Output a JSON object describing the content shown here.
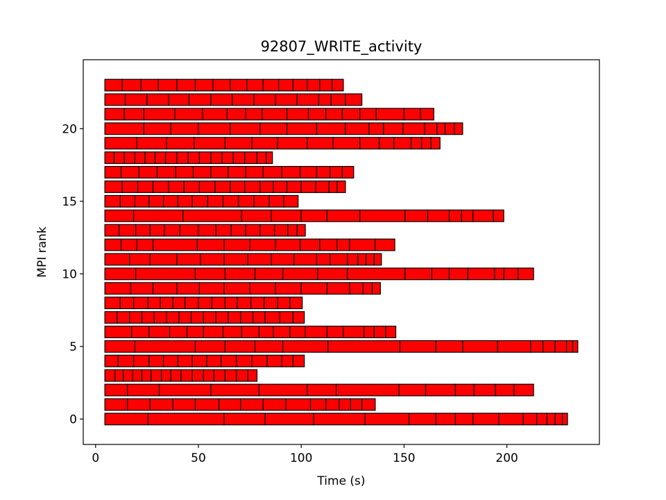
{
  "chart_data": {
    "type": "bar",
    "orientation": "horizontal-timeline",
    "title": "92807_WRITE_activity",
    "xlabel": "Time (s)",
    "ylabel": "MPI rank",
    "xlim": [
      -6,
      245
    ],
    "ylim": [
      -1.75,
      24.75
    ],
    "xticks": [
      0,
      50,
      100,
      150,
      200
    ],
    "yticks": [
      0,
      5,
      10,
      15,
      20
    ],
    "bar_color": "#ff0000",
    "edge_color": "#000000",
    "grid": false,
    "ranks": [
      {
        "rank": 0,
        "start": 4.5,
        "bounds": [
          25.5,
          62.5,
          82.5,
          106.0,
          131.0,
          152.5,
          165.5,
          175.0,
          183.5,
          196.0,
          208.0,
          214.5,
          219.5,
          223.5,
          227.0
        ],
        "end": 229.5
      },
      {
        "rank": 1,
        "start": 4.5,
        "bounds": [
          15.5,
          26.5,
          37.5,
          48.5,
          60.0,
          70.5,
          81.5,
          92.5,
          104.5,
          112.0,
          118.5,
          124.0,
          129.5
        ],
        "end": 136.0
      },
      {
        "rank": 2,
        "start": 4.5,
        "bounds": [
          15.5,
          31.0,
          56.0,
          79.5,
          103.0,
          117.0,
          147.5,
          160.5,
          175.0,
          184.0,
          194.5,
          203.5
        ],
        "end": 213.0
      },
      {
        "rank": 3,
        "start": 4.5,
        "bounds": [
          9.5,
          13.5,
          18.0,
          22.5,
          27.0,
          32.0,
          36.5,
          41.5,
          47.0,
          52.5,
          57.5,
          63.0,
          68.5,
          74.0
        ],
        "end": 78.5
      },
      {
        "rank": 4,
        "start": 4.5,
        "bounds": [
          11.0,
          18.5,
          26.0,
          33.0,
          40.0,
          47.0,
          54.0,
          61.0,
          68.5,
          76.0,
          83.5,
          90.5,
          96.0
        ],
        "end": 101.5
      },
      {
        "rank": 5,
        "start": 4.5,
        "bounds": [
          19.0,
          48.5,
          63.0,
          77.5,
          91.0,
          113.0,
          148.0,
          165.5,
          178.5,
          195.5,
          211.5,
          217.5,
          223.5,
          229.0,
          232.0
        ],
        "end": 234.5
      },
      {
        "rank": 6,
        "start": 4.5,
        "bounds": [
          17.5,
          26.0,
          36.0,
          44.5,
          52.5,
          62.0,
          71.0,
          79.5,
          86.5,
          94.5,
          102.0,
          112.5,
          120.5,
          130.5,
          135.5,
          141.0
        ],
        "end": 146.0
      },
      {
        "rank": 7,
        "start": 4.5,
        "bounds": [
          10.5,
          16.5,
          22.5,
          28.5,
          34.5,
          40.5,
          46.5,
          52.5,
          58.5,
          64.5,
          70.5,
          76.5,
          82.5,
          89.5,
          96.0
        ],
        "end": 101.5
      },
      {
        "rank": 8,
        "start": 4.5,
        "bounds": [
          12.0,
          18.5,
          25.5,
          31.5,
          37.5,
          43.5,
          50.0,
          56.5,
          63.0,
          69.0,
          75.5,
          82.0,
          88.5,
          94.5
        ],
        "end": 100.5
      },
      {
        "rank": 9,
        "start": 4.5,
        "bounds": [
          17.0,
          28.0,
          39.5,
          50.5,
          62.5,
          75.0,
          87.5,
          100.0,
          112.5,
          123.5,
          130.0,
          134.5
        ],
        "end": 138.5
      },
      {
        "rank": 10,
        "start": 4.5,
        "bounds": [
          19.5,
          48.5,
          63.0,
          77.5,
          91.0,
          108.0,
          122.5,
          150.5,
          163.5,
          172.0,
          181.0,
          194.0,
          198.5,
          205.5
        ],
        "end": 213.0
      },
      {
        "rank": 11,
        "start": 4.5,
        "bounds": [
          16.5,
          26.5,
          39.5,
          51.0,
          62.5,
          74.0,
          85.5,
          96.5,
          107.5,
          114.0,
          122.5,
          127.5,
          131.5,
          135.5
        ],
        "end": 139.0
      },
      {
        "rank": 12,
        "start": 4.5,
        "bounds": [
          12.5,
          20.0,
          28.0,
          49.5,
          62.5,
          75.0,
          87.5,
          99.5,
          109.0,
          117.5,
          123.5,
          136.0
        ],
        "end": 145.5
      },
      {
        "rank": 13,
        "start": 4.5,
        "bounds": [
          11.5,
          19.5,
          26.5,
          33.5,
          41.0,
          50.0,
          58.5,
          66.0,
          73.0,
          80.0,
          87.0,
          93.5,
          98.0
        ],
        "end": 102.0
      },
      {
        "rank": 14,
        "start": 4.5,
        "bounds": [
          18.5,
          42.5,
          71.0,
          85.5,
          100.0,
          112.5,
          128.5,
          150.5,
          161.5,
          172.0,
          178.0,
          183.5,
          193.5
        ],
        "end": 198.5
      },
      {
        "rank": 15,
        "start": 4.5,
        "bounds": [
          12.0,
          19.0,
          26.0,
          33.0,
          40.0,
          47.0,
          54.5,
          62.0,
          69.5,
          77.0,
          84.5,
          91.5
        ],
        "end": 98.5
      },
      {
        "rank": 16,
        "start": 4.5,
        "bounds": [
          13.0,
          20.5,
          28.0,
          35.5,
          43.0,
          50.5,
          58.0,
          65.5,
          72.5,
          80.0,
          86.5,
          93.0,
          100.0,
          107.0,
          113.5,
          117.5
        ],
        "end": 121.5
      },
      {
        "rank": 17,
        "start": 4.5,
        "bounds": [
          12.5,
          21.0,
          30.0,
          39.0,
          47.5,
          56.0,
          64.5,
          73.0,
          81.5,
          90.5,
          99.5,
          107.5,
          114.0,
          120.0
        ],
        "end": 125.5
      },
      {
        "rank": 18,
        "start": 4.5,
        "bounds": [
          9.0,
          14.0,
          19.0,
          24.0,
          29.0,
          34.0,
          39.5,
          45.0,
          50.5,
          56.0,
          61.5,
          67.0,
          72.5,
          78.5,
          83.0
        ],
        "end": 86.0
      },
      {
        "rank": 19,
        "start": 4.5,
        "bounds": [
          20.0,
          34.5,
          48.0,
          63.0,
          76.0,
          88.5,
          103.0,
          115.5,
          128.5,
          138.0,
          145.0,
          153.5,
          158.5,
          163.0
        ],
        "end": 167.5
      },
      {
        "rank": 20,
        "start": 4.5,
        "bounds": [
          23.5,
          36.5,
          50.0,
          65.5,
          80.0,
          93.0,
          107.5,
          121.5,
          133.0,
          140.0,
          149.5,
          160.0,
          166.0,
          170.0,
          174.5
        ],
        "end": 178.5
      },
      {
        "rank": 21,
        "start": 4.5,
        "bounds": [
          14.0,
          23.5,
          38.5,
          52.0,
          64.0,
          73.0,
          81.0,
          93.0,
          103.5,
          112.0,
          120.0,
          128.5,
          136.5,
          150.0,
          158.0
        ],
        "end": 164.5
      },
      {
        "rank": 22,
        "start": 4.5,
        "bounds": [
          14.5,
          25.0,
          35.5,
          45.5,
          56.0,
          66.5,
          77.0,
          87.5,
          98.0,
          108.5,
          114.5,
          121.5
        ],
        "end": 129.5
      },
      {
        "rank": 23,
        "start": 4.5,
        "bounds": [
          13.0,
          22.0,
          30.5,
          39.5,
          48.5,
          57.0,
          65.5,
          73.5,
          81.5,
          89.0,
          96.0,
          103.0,
          109.0,
          115.0
        ],
        "end": 120.5
      }
    ]
  }
}
